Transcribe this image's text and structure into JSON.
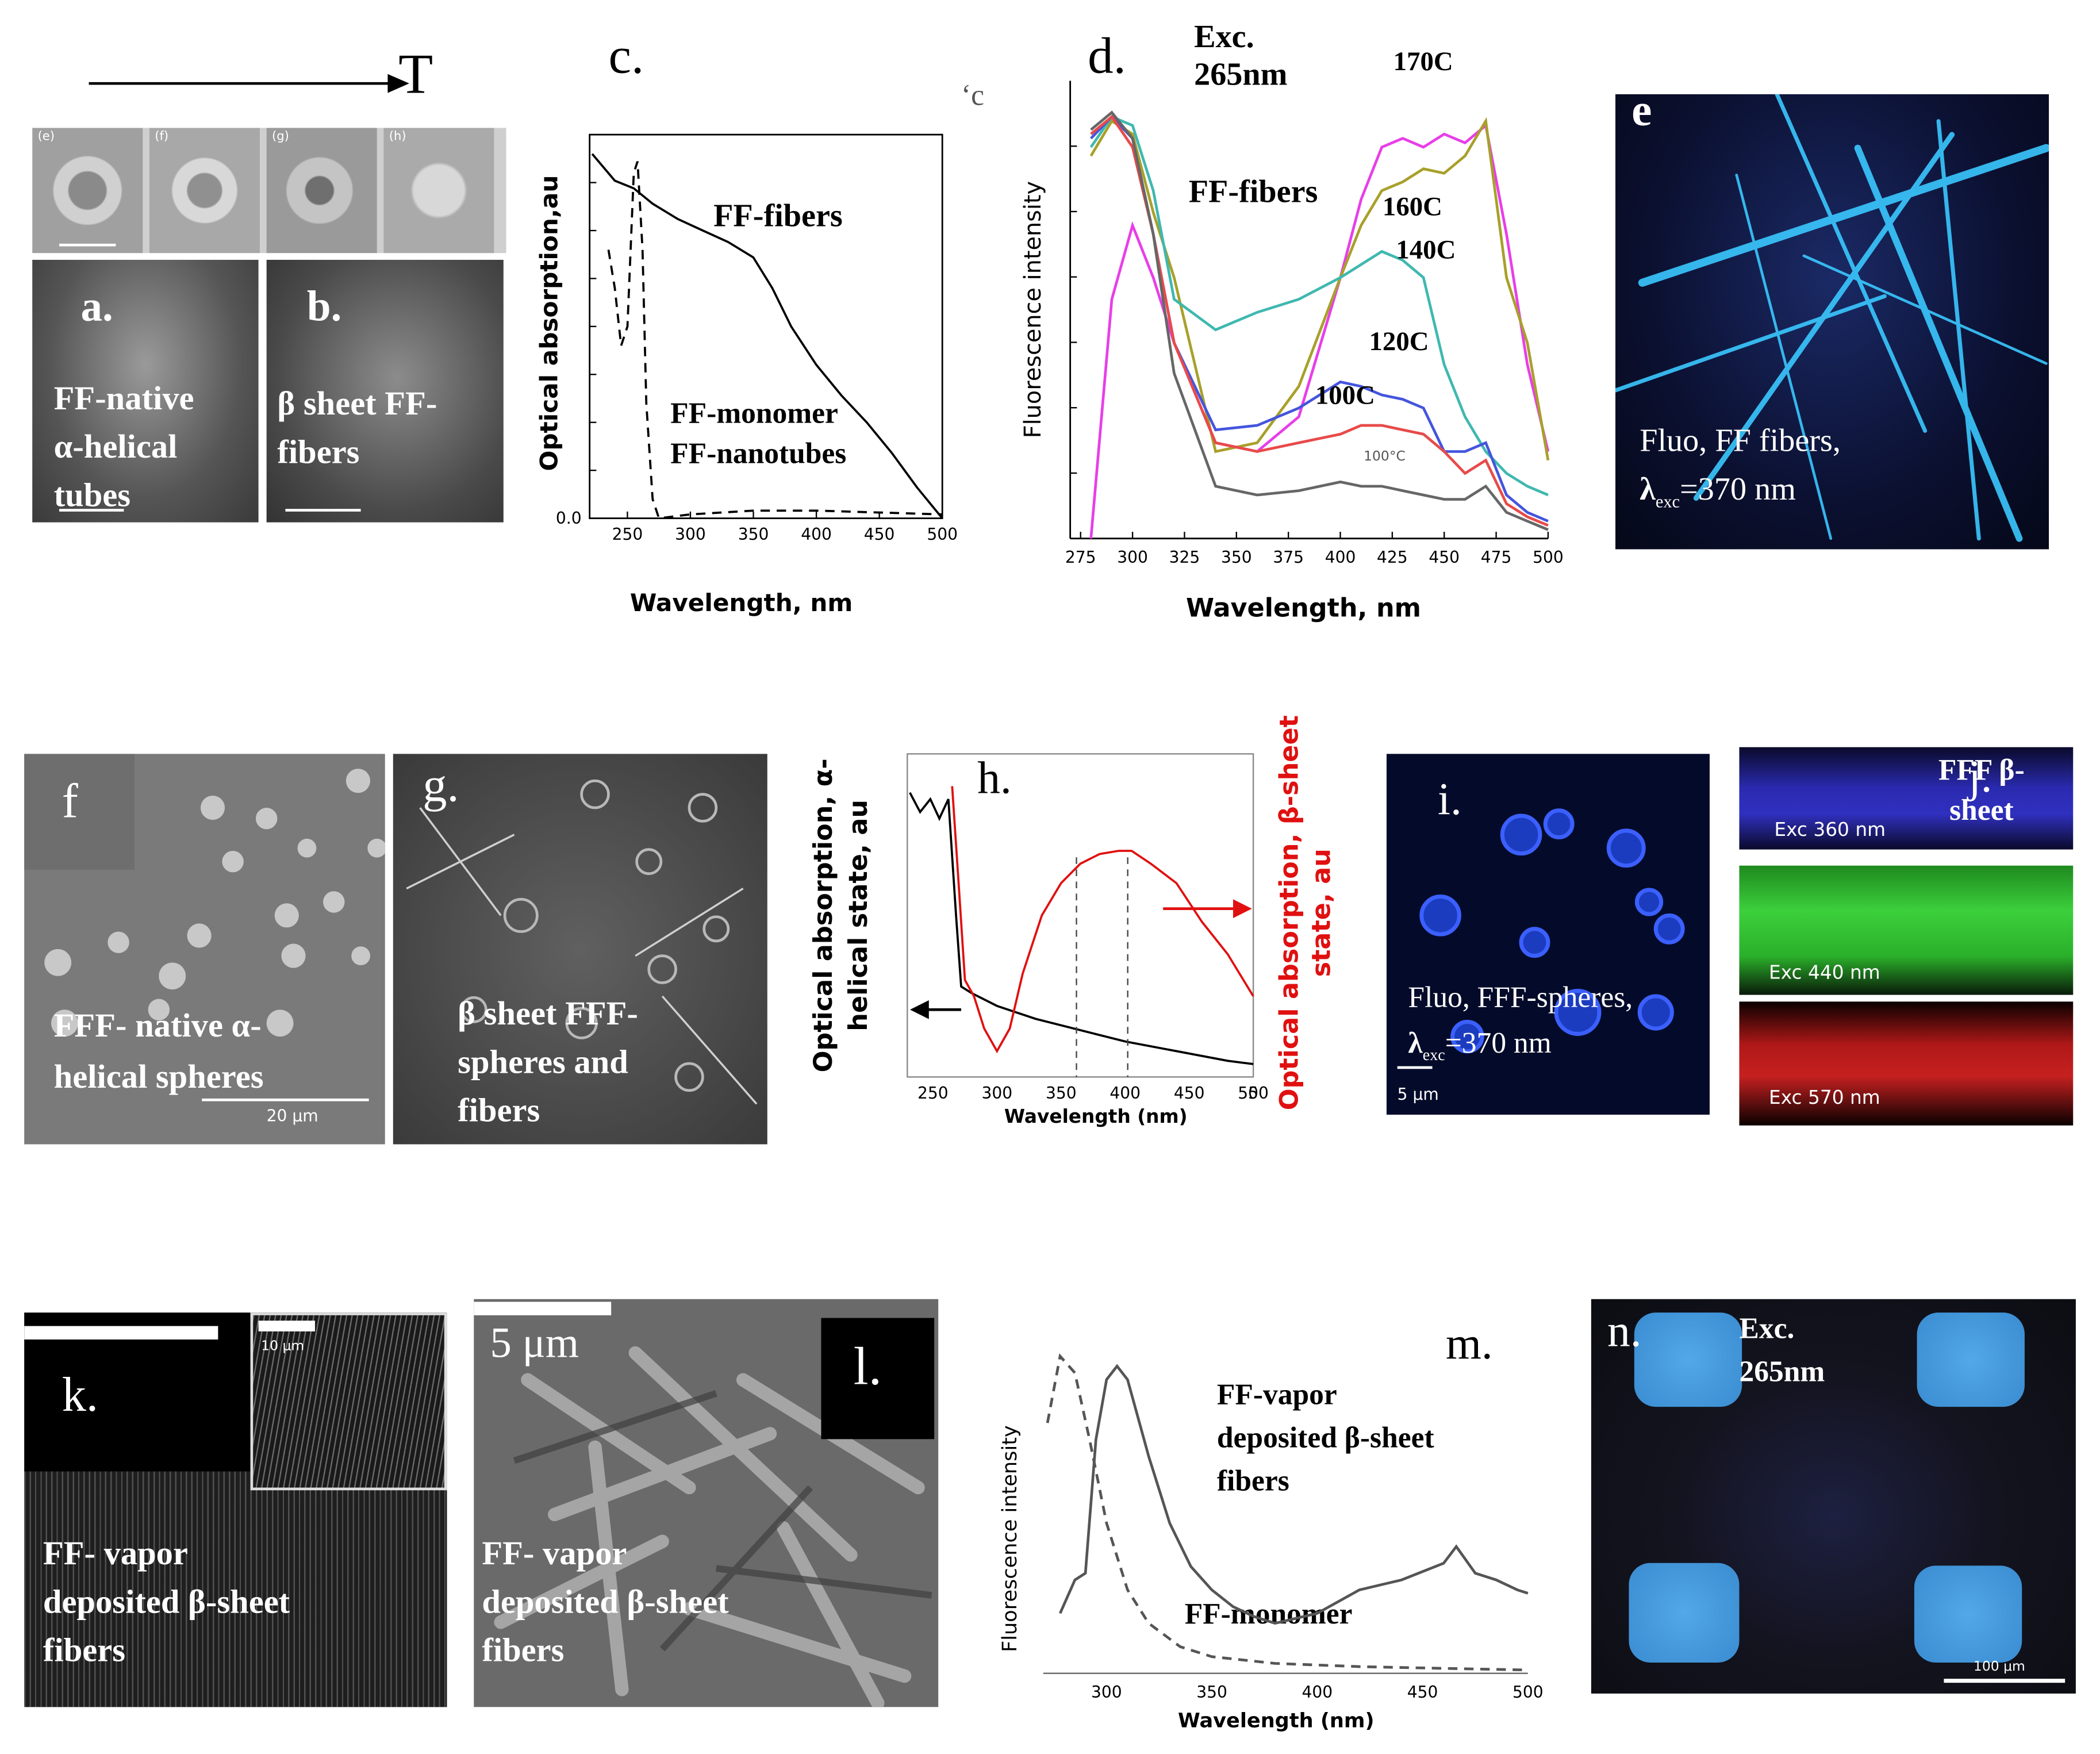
{
  "figure": {
    "arrow_label": "T",
    "row1": {
      "sem_small_labels": [
        "(e)",
        "(f)",
        "(g)",
        "(h)"
      ],
      "a": {
        "letter": "a.",
        "text_line1": "FF-native",
        "text_line2": "α-helical",
        "text_line3": "tubes"
      },
      "b": {
        "letter": "b.",
        "text_line1": "β sheet  FF-",
        "text_line2": "fibers"
      },
      "c": {
        "letter": "c.",
        "stray_mark": "‘c",
        "label_fibers": "FF-fibers",
        "label_monomer": "FF-monomer",
        "label_nanotubes": "FF-nanotubes",
        "ylabel": "Optical absorption,au",
        "xlabel": "Wavelength, nm",
        "yzero_tick": "0.0",
        "xticks": [
          "250",
          "300",
          "350",
          "400",
          "450",
          "500"
        ]
      },
      "d": {
        "letter": "d.",
        "exc_line1": "Exc.",
        "exc_line2": "265nm",
        "label_fibers": "FF-fibers",
        "temps": [
          "170C",
          "160C",
          "140C",
          "120C",
          "100C"
        ],
        "temp_small": "100°C",
        "ylabel": "Fluorescence intensity",
        "xlabel": "Wavelength, nm",
        "xticks": [
          "275",
          "300",
          "325",
          "350",
          "375",
          "400",
          "425",
          "450",
          "475",
          "500"
        ]
      },
      "e": {
        "letter": "e",
        "text_line1": "Fluo, FF fibers,",
        "lambda": "λ",
        "sub": "exc",
        "value": "=370 nm"
      }
    },
    "row2": {
      "f": {
        "letter": "f",
        "text_line1": "FFF- native α-",
        "text_line2": "helical spheres",
        "scale": "20 μm"
      },
      "g": {
        "letter": "g.",
        "text_line1": "β sheet  FFF-",
        "text_line2": "spheres and",
        "text_line3": "fibers"
      },
      "h": {
        "letter": "h.",
        "ylabel_left_line1": "Optical absorption, α-",
        "ylabel_left_line2": "helical state, au",
        "ylabel_right_line1": "Optical absorption, β-sheet",
        "ylabel_right_line2": "state, au",
        "xlabel": "Wavelength (nm)",
        "xticks": [
          "250",
          "300",
          "350",
          "400",
          "450",
          "500",
          "5"
        ]
      },
      "i": {
        "letter": "i.",
        "text_line1": "Fluo, FFF-spheres,",
        "lambda": "λ",
        "sub": "exc",
        "value": "=370 nm",
        "scale": "5 μm"
      },
      "j": {
        "letter": "j.",
        "title_line1": "FFF β-",
        "title_line2": "sheet",
        "exc": [
          "Exc 360 nm",
          "Exc 440 nm",
          "Exc 570 nm"
        ]
      }
    },
    "row3": {
      "k": {
        "letter": "k.",
        "text_line1": "FF- vapor",
        "text_line2": "deposited β-sheet",
        "text_line3": "fibers",
        "inset_scale": "10 μm"
      },
      "l": {
        "letter": "l.",
        "scale": "5 μm",
        "text_line1": "FF- vapor",
        "text_line2": "deposited β-sheet",
        "text_line3": "fibers"
      },
      "m": {
        "letter": "m.",
        "label_line1": "FF-vapor",
        "label_line2": "deposited β-sheet",
        "label_line3": "fibers",
        "label_monomer": "FF-monomer",
        "ylabel": "Fluorescence intensity",
        "xlabel": "Wavelength (nm)",
        "xticks": [
          "300",
          "350",
          "400",
          "450",
          "500"
        ]
      },
      "n": {
        "letter": "n.",
        "exc_line1": "Exc.",
        "exc_line2": "265nm",
        "scale": "100 μm"
      }
    }
  },
  "chart_data": [
    {
      "type": "line",
      "panel": "c",
      "xlabel": "Wavelength, nm",
      "ylabel": "Optical absorption,au",
      "xlim": [
        220,
        500
      ],
      "series": [
        {
          "name": "FF-fibers",
          "style": "solid",
          "x": [
            222,
            240,
            255,
            270,
            290,
            310,
            330,
            350,
            365,
            380,
            400,
            420,
            440,
            460,
            480,
            500
          ],
          "y": [
            0.95,
            0.88,
            0.86,
            0.82,
            0.78,
            0.75,
            0.72,
            0.68,
            0.6,
            0.5,
            0.4,
            0.32,
            0.25,
            0.17,
            0.08,
            0.0
          ]
        },
        {
          "name": "FF-monomer",
          "style": "dashed",
          "x": [
            235,
            240,
            245,
            250,
            255,
            258,
            262,
            265,
            270,
            275,
            300,
            350,
            400,
            450,
            500
          ],
          "y": [
            0.7,
            0.6,
            0.45,
            0.5,
            0.9,
            0.93,
            0.7,
            0.3,
            0.05,
            0.0,
            0.01,
            0.02,
            0.02,
            0.015,
            0.01
          ]
        }
      ]
    },
    {
      "type": "line",
      "panel": "d",
      "xlabel": "Wavelength, nm",
      "ylabel": "Fluorescence intensity",
      "xlim": [
        275,
        500
      ],
      "series": [
        {
          "name": "170C",
          "color": "#e83ee8",
          "x": [
            280,
            290,
            300,
            310,
            320,
            340,
            360,
            380,
            400,
            410,
            420,
            430,
            440,
            450,
            460,
            470,
            480,
            490,
            500
          ],
          "y": [
            0.0,
            0.55,
            0.72,
            0.6,
            0.45,
            0.22,
            0.2,
            0.28,
            0.6,
            0.78,
            0.9,
            0.92,
            0.9,
            0.93,
            0.91,
            0.95,
            0.7,
            0.4,
            0.2
          ]
        },
        {
          "name": "160C",
          "color": "#a8a02a",
          "x": [
            280,
            290,
            300,
            310,
            320,
            340,
            360,
            380,
            400,
            410,
            420,
            430,
            440,
            450,
            460,
            470,
            480,
            490,
            500
          ],
          "y": [
            0.88,
            0.96,
            0.93,
            0.75,
            0.6,
            0.2,
            0.22,
            0.35,
            0.6,
            0.72,
            0.8,
            0.82,
            0.85,
            0.84,
            0.88,
            0.96,
            0.6,
            0.45,
            0.18
          ]
        },
        {
          "name": "140C",
          "color": "#3fb8b0",
          "x": [
            280,
            290,
            300,
            310,
            320,
            340,
            360,
            380,
            400,
            410,
            420,
            430,
            440,
            450,
            460,
            470,
            480,
            490,
            500
          ],
          "y": [
            0.9,
            0.97,
            0.95,
            0.8,
            0.55,
            0.48,
            0.52,
            0.55,
            0.6,
            0.63,
            0.66,
            0.64,
            0.6,
            0.4,
            0.28,
            0.2,
            0.15,
            0.12,
            0.1
          ]
        },
        {
          "name": "120C",
          "color": "#4455dd",
          "x": [
            280,
            290,
            300,
            310,
            320,
            340,
            360,
            380,
            400,
            410,
            420,
            430,
            440,
            450,
            460,
            470,
            480,
            490,
            500
          ],
          "y": [
            0.92,
            0.97,
            0.92,
            0.7,
            0.45,
            0.25,
            0.26,
            0.3,
            0.36,
            0.35,
            0.33,
            0.32,
            0.3,
            0.2,
            0.2,
            0.22,
            0.1,
            0.06,
            0.04
          ]
        },
        {
          "name": "100C",
          "color": "#e84a4a",
          "x": [
            280,
            290,
            300,
            310,
            320,
            340,
            360,
            380,
            400,
            410,
            420,
            430,
            440,
            450,
            460,
            470,
            480,
            490,
            500
          ],
          "y": [
            0.93,
            0.97,
            0.9,
            0.7,
            0.45,
            0.22,
            0.2,
            0.22,
            0.24,
            0.26,
            0.26,
            0.25,
            0.24,
            0.2,
            0.15,
            0.18,
            0.08,
            0.05,
            0.03
          ]
        },
        {
          "name": "100°C",
          "color": "#666666",
          "x": [
            280,
            290,
            300,
            310,
            320,
            340,
            360,
            380,
            400,
            410,
            420,
            430,
            440,
            450,
            460,
            470,
            480,
            490,
            500
          ],
          "y": [
            0.94,
            0.98,
            0.92,
            0.7,
            0.38,
            0.12,
            0.1,
            0.11,
            0.13,
            0.12,
            0.12,
            0.11,
            0.1,
            0.09,
            0.09,
            0.12,
            0.06,
            0.04,
            0.02
          ]
        }
      ]
    },
    {
      "type": "line",
      "panel": "h",
      "xlabel": "Wavelength (nm)",
      "xlim": [
        230,
        500
      ],
      "series": [
        {
          "name": "α-helical",
          "color": "#000000",
          "x": [
            232,
            240,
            248,
            255,
            262,
            268,
            272,
            280,
            300,
            330,
            360,
            400,
            440,
            480,
            500
          ],
          "y": [
            0.88,
            0.82,
            0.86,
            0.8,
            0.86,
            0.5,
            0.28,
            0.26,
            0.22,
            0.18,
            0.15,
            0.11,
            0.08,
            0.05,
            0.04
          ]
        },
        {
          "name": "β-sheet",
          "color": "#e01010",
          "x": [
            265,
            270,
            275,
            282,
            290,
            300,
            310,
            320,
            335,
            350,
            365,
            380,
            395,
            405,
            420,
            440,
            460,
            480,
            500
          ],
          "y": [
            0.9,
            0.6,
            0.3,
            0.25,
            0.15,
            0.08,
            0.15,
            0.32,
            0.5,
            0.6,
            0.66,
            0.69,
            0.7,
            0.7,
            0.66,
            0.6,
            0.48,
            0.38,
            0.25
          ]
        }
      ]
    },
    {
      "type": "line",
      "panel": "m",
      "xlabel": "Wavelength (nm)",
      "ylabel": "Fluorescence intensity",
      "xlim": [
        270,
        500
      ],
      "series": [
        {
          "name": "FF-vapor deposited β-sheet fibers",
          "style": "solid",
          "x": [
            278,
            285,
            290,
            295,
            300,
            305,
            310,
            320,
            330,
            340,
            350,
            360,
            370,
            380,
            400,
            420,
            440,
            460,
            466,
            475,
            485,
            495,
            500
          ],
          "y": [
            0.18,
            0.28,
            0.3,
            0.7,
            0.88,
            0.92,
            0.88,
            0.65,
            0.45,
            0.32,
            0.25,
            0.2,
            0.17,
            0.15,
            0.18,
            0.25,
            0.28,
            0.33,
            0.38,
            0.3,
            0.28,
            0.25,
            0.24
          ]
        },
        {
          "name": "FF-monomer",
          "style": "dashed",
          "x": [
            272,
            278,
            285,
            292,
            300,
            310,
            320,
            335,
            350,
            380,
            420,
            460,
            500
          ],
          "y": [
            0.75,
            0.95,
            0.9,
            0.7,
            0.45,
            0.25,
            0.15,
            0.08,
            0.05,
            0.03,
            0.02,
            0.015,
            0.01
          ]
        }
      ]
    }
  ]
}
